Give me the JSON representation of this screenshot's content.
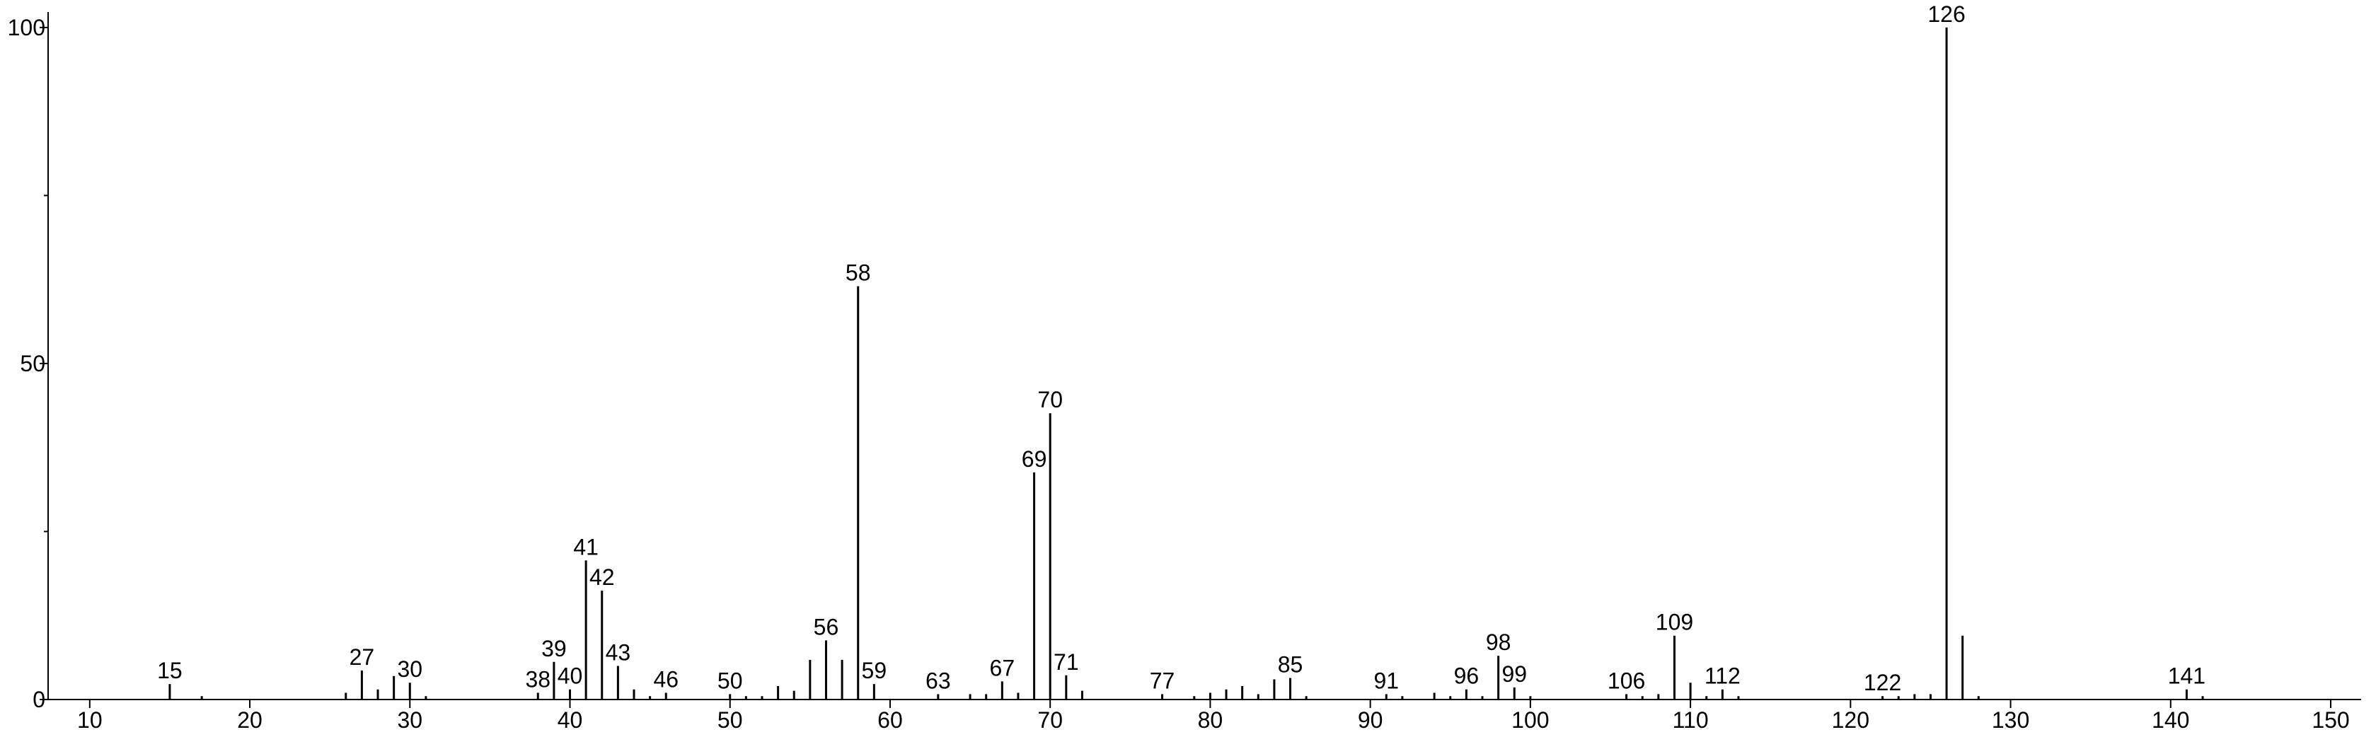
{
  "chart_data": {
    "type": "stem",
    "x": [
      15,
      17,
      26,
      27,
      28,
      29,
      30,
      31,
      38,
      39,
      40,
      41,
      42,
      43,
      44,
      45,
      46,
      50,
      51,
      52,
      53,
      54,
      55,
      56,
      57,
      58,
      59,
      63,
      65,
      66,
      67,
      68,
      69,
      70,
      71,
      72,
      77,
      79,
      80,
      81,
      82,
      83,
      84,
      85,
      86,
      91,
      92,
      94,
      95,
      96,
      97,
      98,
      99,
      100,
      106,
      107,
      108,
      109,
      110,
      111,
      112,
      113,
      122,
      123,
      124,
      125,
      126,
      127,
      128,
      141,
      142
    ],
    "values": [
      2.3,
      0.5,
      1,
      4.3,
      1.5,
      3.5,
      2.5,
      0.5,
      1,
      5.6,
      1.5,
      20.7,
      16.2,
      5,
      1.5,
      0.5,
      1,
      0.8,
      0.5,
      0.5,
      2,
      1.3,
      5.9,
      8.8,
      5.9,
      61.5,
      2.3,
      0.8,
      0.8,
      0.8,
      2.7,
      1,
      33.8,
      42.6,
      3.6,
      1.3,
      0.8,
      0.5,
      1,
      1.5,
      2,
      0.8,
      3,
      3.2,
      0.5,
      0.8,
      0.5,
      1,
      0.5,
      1.5,
      0.5,
      6.5,
      1.8,
      0.5,
      0.8,
      0.5,
      0.8,
      9.5,
      2.5,
      0.5,
      1.5,
      0.5,
      0.5,
      0.5,
      0.8,
      0.8,
      100,
      9.5,
      0.5,
      1.5,
      0.5
    ],
    "point_labels": [
      "15",
      null,
      null,
      "27",
      null,
      null,
      "30",
      null,
      "38",
      "39",
      "40",
      "41",
      "42",
      "43",
      null,
      null,
      "46",
      "50",
      null,
      null,
      null,
      null,
      null,
      "56",
      null,
      "58",
      "59",
      "63",
      null,
      null,
      "67",
      null,
      "69",
      "70",
      "71",
      null,
      "77",
      null,
      null,
      null,
      null,
      null,
      null,
      "85",
      null,
      "91",
      null,
      null,
      null,
      "96",
      null,
      "98",
      "99",
      null,
      "106",
      null,
      null,
      "109",
      null,
      null,
      "112",
      null,
      "122",
      null,
      null,
      null,
      "126",
      null,
      null,
      "141",
      null
    ],
    "color": "#000000",
    "xlim": [
      7.4,
      151.9
    ],
    "xticks": [
      10,
      20,
      30,
      40,
      50,
      60,
      70,
      80,
      90,
      100,
      110,
      120,
      130,
      140,
      150
    ],
    "ylim": [
      0,
      102.3
    ],
    "yticks": [
      0,
      50,
      100
    ],
    "yminorticks": [
      25,
      75
    ]
  }
}
